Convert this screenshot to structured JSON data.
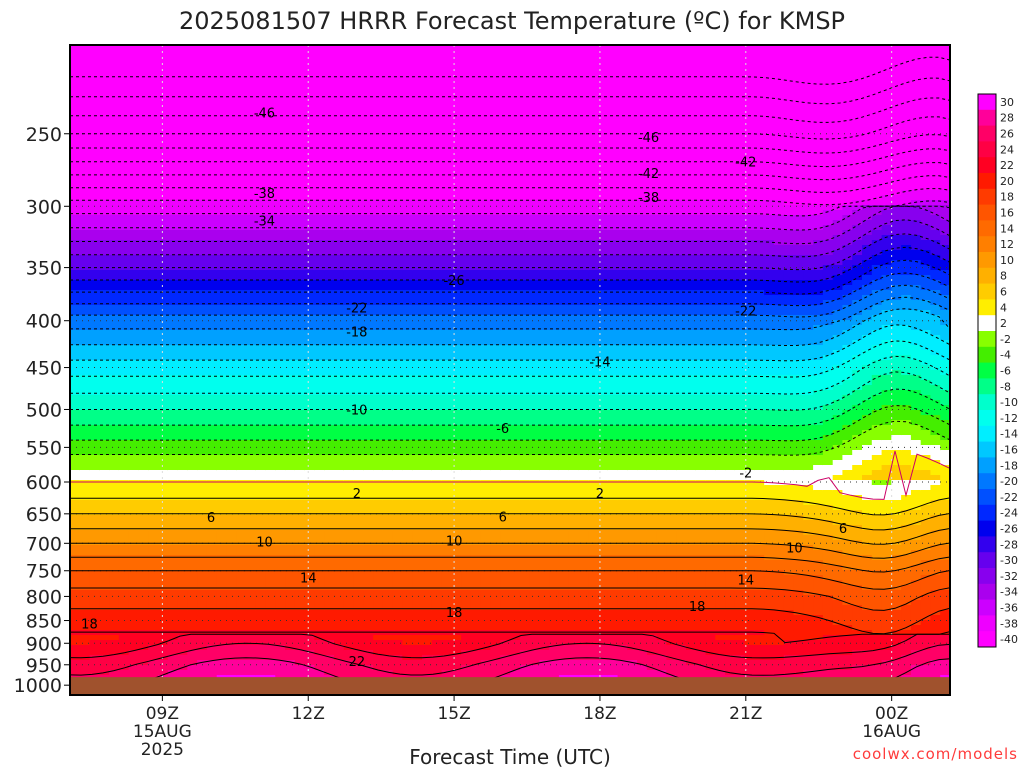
{
  "chart_data": {
    "type": "contour",
    "title": "2025081507 HRRR Forecast Temperature (ºC) for KMSP",
    "xlabel": "Forecast Time (UTC)",
    "ylabel": "",
    "y_scale": "log-pressure",
    "y_ticks": [
      250,
      300,
      350,
      400,
      450,
      500,
      550,
      600,
      650,
      700,
      750,
      800,
      850,
      900,
      950,
      1000
    ],
    "y_range_hPa": [
      200,
      1025
    ],
    "surface_pressure_hPa": 980,
    "x_ticks": [
      {
        "label": "09Z",
        "sub1": "15AUG",
        "sub2": "2025"
      },
      {
        "label": "12Z",
        "sub1": "",
        "sub2": ""
      },
      {
        "label": "15Z",
        "sub1": "",
        "sub2": ""
      },
      {
        "label": "18Z",
        "sub1": "",
        "sub2": ""
      },
      {
        "label": "21Z",
        "sub1": "",
        "sub2": ""
      },
      {
        "label": "00Z",
        "sub1": "16AUG",
        "sub2": ""
      }
    ],
    "x_range_hours_from_09Z": [
      -1.9,
      16.2
    ],
    "colorbar": {
      "labels": [
        "30",
        "28",
        "26",
        "24",
        "22",
        "20",
        "18",
        "16",
        "14",
        "12",
        "10",
        "8",
        "6",
        "4",
        "2",
        "-2",
        "-4",
        "-6",
        "-8",
        "-10",
        "-12",
        "-14",
        "-16",
        "-18",
        "-20",
        "-22",
        "-24",
        "-26",
        "-28",
        "-30",
        "-32",
        "-34",
        "-36",
        "-38",
        "-40"
      ],
      "colors": [
        "#ff00ff",
        "#ff009a",
        "#ff0066",
        "#ff0044",
        "#ff0022",
        "#ff1a00",
        "#ff3b00",
        "#ff5500",
        "#ff6a00",
        "#ff7f00",
        "#ff9900",
        "#ffb000",
        "#ffcc00",
        "#ffee00",
        "#ffffff",
        "#88ff00",
        "#44ee00",
        "#00ff44",
        "#00ff88",
        "#00ffcc",
        "#00ffee",
        "#00eeff",
        "#00c8ff",
        "#00a0ff",
        "#0078ff",
        "#0050ff",
        "#0028ff",
        "#0000ee",
        "#3300ee",
        "#6600ee",
        "#8800ee",
        "#aa00ee",
        "#cc00ff",
        "#ee00ff",
        "#ff00ff"
      ]
    },
    "contour_labels": [
      {
        "text": "-46",
        "t": 2.1,
        "p": 237
      },
      {
        "text": "-46",
        "t": 10.0,
        "p": 252
      },
      {
        "text": "-42",
        "t": 10.0,
        "p": 276
      },
      {
        "text": "-42",
        "t": 12.0,
        "p": 268
      },
      {
        "text": "-38",
        "t": 2.1,
        "p": 290
      },
      {
        "text": "-38",
        "t": 10.0,
        "p": 293
      },
      {
        "text": "-34",
        "t": 2.1,
        "p": 311
      },
      {
        "text": "-26",
        "t": 6.0,
        "p": 361
      },
      {
        "text": "-22",
        "t": 4.0,
        "p": 387
      },
      {
        "text": "-22",
        "t": 12.0,
        "p": 390
      },
      {
        "text": "-18",
        "t": 4.0,
        "p": 411
      },
      {
        "text": "-14",
        "t": 9.0,
        "p": 443
      },
      {
        "text": "-10",
        "t": 4.0,
        "p": 500
      },
      {
        "text": "-6",
        "t": 7.0,
        "p": 524
      },
      {
        "text": "-2",
        "t": 12.0,
        "p": 586
      },
      {
        "text": "2",
        "t": 4.0,
        "p": 617
      },
      {
        "text": "2",
        "t": 9.0,
        "p": 617
      },
      {
        "text": "6",
        "t": 1.0,
        "p": 655
      },
      {
        "text": "6",
        "t": 7.0,
        "p": 654
      },
      {
        "text": "6",
        "t": 14.0,
        "p": 674
      },
      {
        "text": "10",
        "t": 2.1,
        "p": 697
      },
      {
        "text": "10",
        "t": 6.0,
        "p": 695
      },
      {
        "text": "10",
        "t": 13.0,
        "p": 707
      },
      {
        "text": "14",
        "t": 3.0,
        "p": 763
      },
      {
        "text": "14",
        "t": 12.0,
        "p": 767
      },
      {
        "text": "18",
        "t": -1.5,
        "p": 856
      },
      {
        "text": "18",
        "t": 6.0,
        "p": 832
      },
      {
        "text": "18",
        "t": 11.0,
        "p": 820
      },
      {
        "text": "22",
        "t": 4.0,
        "p": 941
      }
    ]
  },
  "watermark": "coolwx.com/models"
}
